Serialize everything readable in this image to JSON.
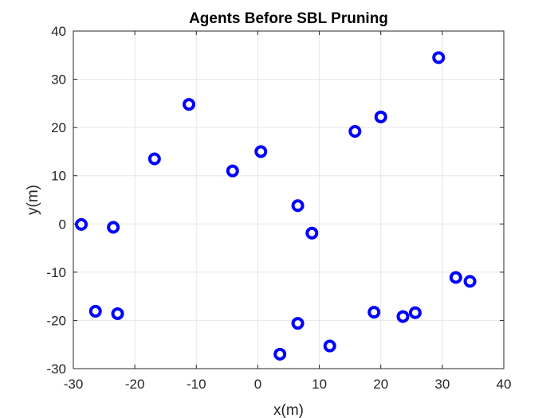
{
  "chart_data": {
    "type": "scatter",
    "title": "Agents Before SBL Pruning",
    "xlabel": "x(m)",
    "ylabel": "y(m)",
    "xlim": [
      -30,
      40
    ],
    "ylim": [
      -30,
      40
    ],
    "xticks": [
      -30,
      -20,
      -10,
      0,
      10,
      20,
      30,
      40
    ],
    "yticks": [
      -30,
      -20,
      -10,
      0,
      10,
      20,
      30,
      40
    ],
    "grid": true,
    "marker_color": "#0000ff",
    "marker_center_color": "#ffffff",
    "points": [
      {
        "x": -28.7,
        "y": -0.1
      },
      {
        "x": -23.5,
        "y": -0.7
      },
      {
        "x": -26.4,
        "y": -18.1
      },
      {
        "x": -22.8,
        "y": -18.6
      },
      {
        "x": -16.8,
        "y": 13.5
      },
      {
        "x": -11.2,
        "y": 24.8
      },
      {
        "x": -4.1,
        "y": 11.0
      },
      {
        "x": 0.5,
        "y": 15.0
      },
      {
        "x": 6.5,
        "y": 3.8
      },
      {
        "x": 8.8,
        "y": -1.9
      },
      {
        "x": 6.5,
        "y": -20.6
      },
      {
        "x": 3.6,
        "y": -27.0
      },
      {
        "x": 11.7,
        "y": -25.3
      },
      {
        "x": 15.8,
        "y": 19.2
      },
      {
        "x": 20.0,
        "y": 22.2
      },
      {
        "x": 18.9,
        "y": -18.3
      },
      {
        "x": 23.6,
        "y": -19.2
      },
      {
        "x": 25.6,
        "y": -18.4
      },
      {
        "x": 29.4,
        "y": 34.5
      },
      {
        "x": 32.2,
        "y": -11.1
      },
      {
        "x": 34.5,
        "y": -11.9
      }
    ]
  }
}
